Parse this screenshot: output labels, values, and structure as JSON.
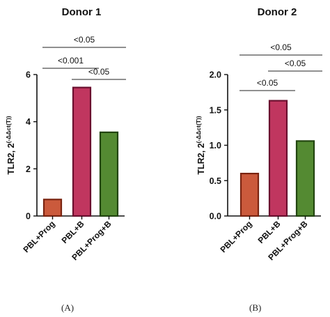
{
  "chart_data": [
    {
      "type": "bar",
      "title": "Donor 1",
      "ylabel": "TLR2, 2(-ΔΔct(T))",
      "ylabel_main": "TLR2, 2",
      "ylabel_sup": "(-ΔΔct(T))",
      "categories": [
        "PBL+Prog",
        "PBL+B",
        "PBL+Prog+B"
      ],
      "values": [
        0.7,
        5.45,
        3.55
      ],
      "ylim": [
        0,
        6
      ],
      "yticks": [
        "0",
        "2",
        "4",
        "6"
      ],
      "ytick_values": [
        0,
        2,
        4,
        6
      ],
      "colors": [
        "#cb5a3c",
        "#c0365f",
        "#548a32"
      ],
      "edge_colors": [
        "#7a2410",
        "#6a0f2e",
        "#22450f"
      ],
      "comparisons": [
        {
          "from": 0,
          "to": 2,
          "label": "<0.05",
          "level": 2
        },
        {
          "from": 0,
          "to": 1,
          "label": "<0.001",
          "level": 1
        },
        {
          "from": 1,
          "to": 2,
          "label": "<0.05",
          "level": 0
        }
      ],
      "panel_label": "(A)"
    },
    {
      "type": "bar",
      "title": "Donor 2",
      "ylabel": "TLR2, 2(-ΔΔct(T))",
      "ylabel_main": "TLR2, 2",
      "ylabel_sup": "(-ΔΔct(T))",
      "categories": [
        "PBL+Prog",
        "PBL+B",
        "PBL+Prog+B"
      ],
      "values": [
        0.6,
        1.63,
        1.06
      ],
      "ylim": [
        0,
        2.0
      ],
      "yticks": [
        "0.0",
        "0.5",
        "1.0",
        "1.5",
        "2.0"
      ],
      "ytick_values": [
        0,
        0.5,
        1.0,
        1.5,
        2.0
      ],
      "colors": [
        "#cb5a3c",
        "#c0365f",
        "#548a32"
      ],
      "edge_colors": [
        "#7a2410",
        "#6a0f2e",
        "#22450f"
      ],
      "comparisons": [
        {
          "from": 0,
          "to": 2,
          "label": "<0.05",
          "level": 2
        },
        {
          "from": 1,
          "to": 2,
          "label": "<0.05",
          "level": 1
        },
        {
          "from": 0,
          "to": 1,
          "label": "<0.05",
          "level": 0
        }
      ],
      "panel_label": "(B)"
    }
  ]
}
